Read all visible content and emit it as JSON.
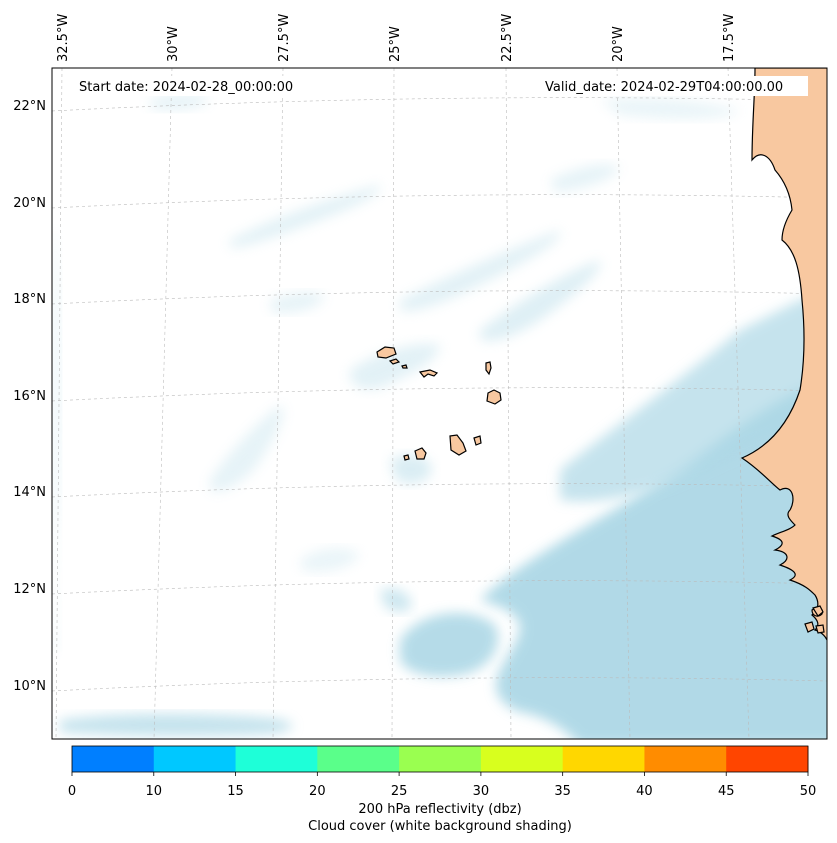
{
  "map": {
    "start_date": "Start date: 2024-02-28_00:00:00",
    "valid_date": "Valid_date: 2024-02-29T04:00:00.00",
    "lon_labels": [
      "32.5°W",
      "30°W",
      "27.5°W",
      "25°W",
      "22.5°W",
      "20°W",
      "17.5°W"
    ],
    "lat_labels": [
      "22°N",
      "20°N",
      "18°N",
      "16°N",
      "14°N",
      "12°N",
      "10°N"
    ],
    "land_color": "#f8c8a0",
    "cloud_color": "#add8e6"
  },
  "colorbar": {
    "ticks": [
      "0",
      "10",
      "15",
      "20",
      "25",
      "30",
      "35",
      "40",
      "45",
      "50"
    ],
    "colors": [
      "#007fff",
      "#00c8ff",
      "#1effd8",
      "#5aff8a",
      "#9aff50",
      "#d8ff1e",
      "#ffd700",
      "#ff8c00",
      "#ff4500"
    ],
    "label": "200 hPa reflectivity (dbz)",
    "sublabel": "Cloud cover (white background shading)"
  }
}
